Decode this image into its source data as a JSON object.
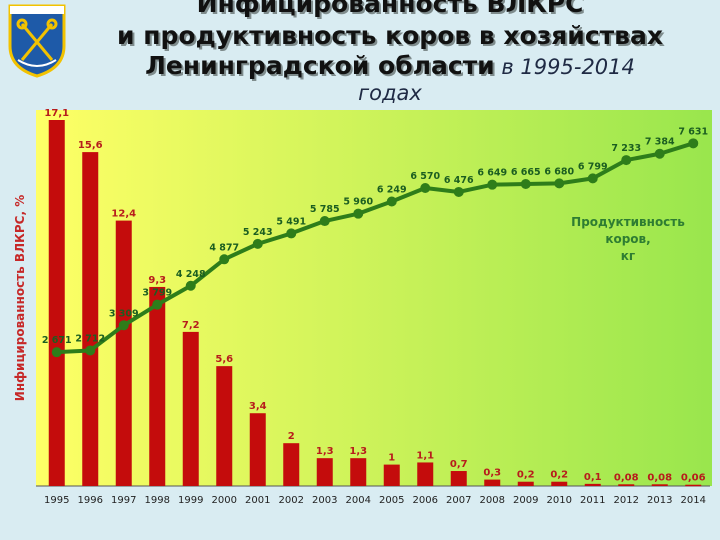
{
  "title": {
    "line1": "Инфицированность ВЛКРС",
    "line2": "и продуктивность коров в хозяйствах",
    "line3_bold": "Ленинградской области",
    "line3_italic": " в 1995-2014",
    "line4_italic": "годах"
  },
  "chart_data": {
    "type": "bar",
    "categories": [
      "1995",
      "1996",
      "1997",
      "1998",
      "1999",
      "2000",
      "2001",
      "2002",
      "2003",
      "2004",
      "2005",
      "2006",
      "2007",
      "2008",
      "2009",
      "2010",
      "2011",
      "2012",
      "2013",
      "2014"
    ],
    "ylabel": "Инфицированность ВЛКРС, %",
    "series": [
      {
        "type": "bar",
        "values": [
          17.1,
          15.6,
          12.4,
          9.3,
          7.2,
          5.6,
          3.4,
          2,
          1.3,
          1.3,
          1,
          1.1,
          0.7,
          0.3,
          0.2,
          0.2,
          0.1,
          0.08,
          0.08,
          0.06
        ],
        "labels": [
          "17,1",
          "15,6",
          "12,4",
          "9,3",
          "7,2",
          "5,6",
          "3,4",
          "2",
          "1,3",
          "1,3",
          "1",
          "1,1",
          "0,7",
          "0,3",
          "0,2",
          "0,2",
          "0,1",
          "0,08",
          "0,08",
          "0,06"
        ],
        "ylim": [
          0,
          17.1
        ]
      },
      {
        "type": "line",
        "name": "Продуктивность коров, кг",
        "values": [
          2671,
          2712,
          3309,
          3799,
          4248,
          4877,
          5243,
          5491,
          5785,
          5960,
          6249,
          6570,
          6476,
          6649,
          6665,
          6680,
          6799,
          7233,
          7384,
          7631
        ],
        "labels": [
          "2 671",
          "2 712",
          "3 309",
          "3 799",
          "4 248",
          "4 877",
          "5 243",
          "5 491",
          "5 785",
          "5 960",
          "6 249",
          "6 570",
          "6 476",
          "6 649",
          "6 665",
          "6 680",
          "6 799",
          "7 233",
          "7 384",
          "7 631"
        ]
      }
    ],
    "legend_line1": "Продуктивность",
    "legend_line2": "коров,",
    "legend_line3": "кг"
  },
  "colors": {
    "bar": "#c40c0c",
    "line": "#2e7d1a",
    "bar_label": "#b71c1c",
    "line_label": "#1b5e20",
    "bg_left": "#ffff66",
    "bg_right": "#99e64d"
  },
  "crest": {
    "icon": "coat-of-arms-icon"
  }
}
